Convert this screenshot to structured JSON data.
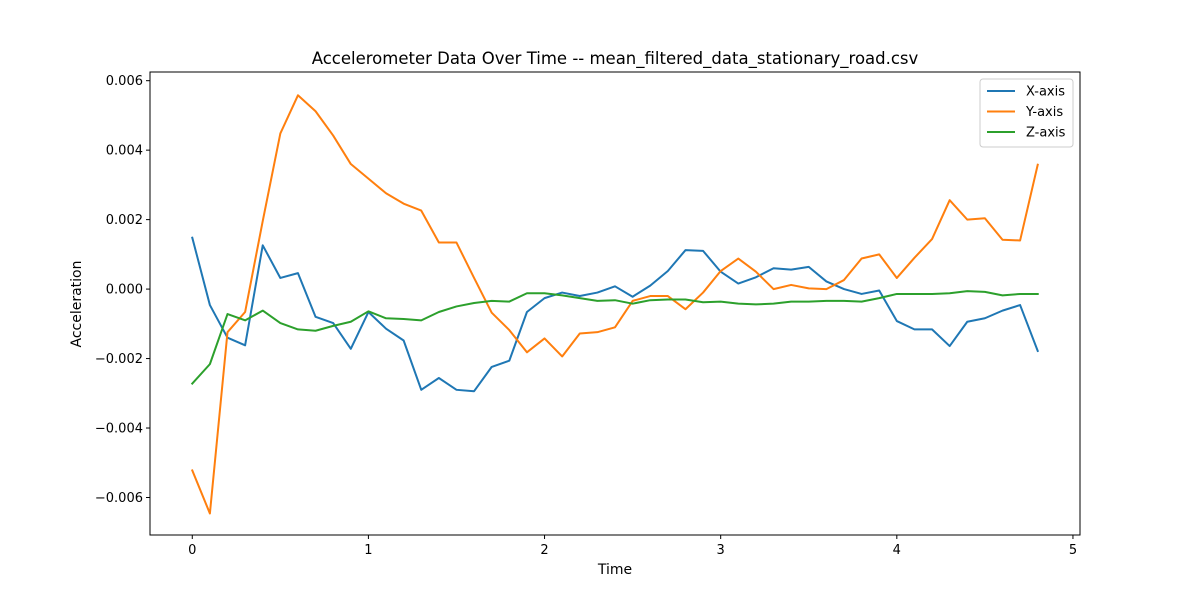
{
  "chart_data": {
    "type": "line",
    "title": "Accelerometer Data Over Time -- mean_filtered_data_stationary_road.csv",
    "xlabel": "Time",
    "ylabel": "Acceleration",
    "xlim": [
      -0.24,
      5.04
    ],
    "ylim": [
      -0.00708,
      0.00625
    ],
    "x_ticks": [
      0,
      1,
      2,
      3,
      4,
      5
    ],
    "y_ticks": [
      -0.006,
      -0.004,
      -0.002,
      0.0,
      0.002,
      0.004,
      0.006
    ],
    "x_tick_labels": [
      "0",
      "1",
      "2",
      "3",
      "4",
      "5"
    ],
    "y_tick_labels": [
      "−0.006",
      "−0.004",
      "−0.002",
      "0.000",
      "0.002",
      "0.004",
      "0.006"
    ],
    "grid": false,
    "legend_position": "top-right",
    "x": [
      0.0,
      0.1,
      0.2,
      0.3,
      0.4,
      0.5,
      0.6,
      0.7,
      0.8,
      0.9,
      1.0,
      1.1,
      1.2,
      1.3,
      1.4,
      1.5,
      1.6,
      1.7,
      1.8,
      1.9,
      2.0,
      2.1,
      2.2,
      2.3,
      2.4,
      2.5,
      2.6,
      2.7,
      2.8,
      2.9,
      3.0,
      3.1,
      3.2,
      3.3,
      3.4,
      3.5,
      3.6,
      3.7,
      3.8,
      3.9,
      4.0,
      4.1,
      4.2,
      4.3,
      4.4,
      4.5,
      4.6,
      4.7,
      4.8
    ],
    "series": [
      {
        "name": "X-axis",
        "color": "#1f77b4",
        "values": [
          0.00148,
          -0.00046,
          -0.0014,
          -0.00162,
          0.00126,
          0.00032,
          0.00046,
          -0.0008,
          -0.00098,
          -0.00172,
          -0.00066,
          -0.00114,
          -0.00148,
          -0.0029,
          -0.00256,
          -0.0029,
          -0.00294,
          -0.00224,
          -0.00206,
          -0.00066,
          -0.00026,
          -0.0001,
          -0.0002,
          -0.0001,
          8e-05,
          -0.00022,
          0.0001,
          0.00052,
          0.00112,
          0.0011,
          0.0005,
          0.00016,
          0.00034,
          0.0006,
          0.00056,
          0.00064,
          0.00022,
          0.0,
          -0.00014,
          -4e-05,
          -0.00092,
          -0.00116,
          -0.00116,
          -0.00164,
          -0.00094,
          -0.00084,
          -0.00062,
          -0.00046,
          -0.00178
        ]
      },
      {
        "name": "Y-axis",
        "color": "#ff7f0e",
        "values": [
          -0.00522,
          -0.00646,
          -0.00124,
          -0.00066,
          0.00196,
          0.00448,
          0.00558,
          0.00512,
          0.00442,
          0.0036,
          0.00318,
          0.00276,
          0.00246,
          0.00226,
          0.00134,
          0.00134,
          0.00032,
          -0.00068,
          -0.00118,
          -0.00182,
          -0.00142,
          -0.00194,
          -0.00128,
          -0.00124,
          -0.0011,
          -0.00034,
          -0.0002,
          -0.0002,
          -0.00058,
          -0.0001,
          0.00052,
          0.00088,
          0.0005,
          0.0,
          0.00012,
          2e-05,
          0.0,
          0.00026,
          0.00088,
          0.001,
          0.00032,
          0.0009,
          0.00144,
          0.00256,
          0.002,
          0.00204,
          0.00142,
          0.0014,
          0.00358
        ]
      },
      {
        "name": "Z-axis",
        "color": "#2ca02c",
        "values": [
          -0.00272,
          -0.00216,
          -0.00072,
          -0.0009,
          -0.00062,
          -0.00098,
          -0.00116,
          -0.0012,
          -0.00106,
          -0.00094,
          -0.00064,
          -0.00084,
          -0.00086,
          -0.0009,
          -0.00066,
          -0.0005,
          -0.0004,
          -0.00034,
          -0.00036,
          -0.00012,
          -0.00012,
          -0.00018,
          -0.00026,
          -0.00034,
          -0.00032,
          -0.00042,
          -0.00032,
          -0.0003,
          -0.0003,
          -0.00038,
          -0.00036,
          -0.00042,
          -0.00044,
          -0.00042,
          -0.00036,
          -0.00036,
          -0.00034,
          -0.00034,
          -0.00036,
          -0.00026,
          -0.00014,
          -0.00014,
          -0.00014,
          -0.00012,
          -6e-05,
          -8e-05,
          -0.00018,
          -0.00014,
          -0.00014
        ]
      }
    ]
  }
}
